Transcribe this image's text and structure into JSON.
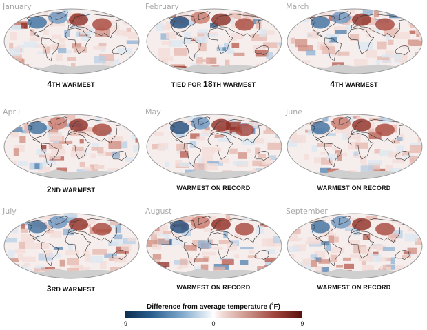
{
  "panels": [
    {
      "month": "January",
      "rank": [
        {
          "t": "4",
          "big": true
        },
        {
          "t": "TH WARMEST",
          "big": false
        }
      ]
    },
    {
      "month": "February",
      "rank": [
        {
          "t": "TIED FOR ",
          "big": false
        },
        {
          "t": "18",
          "big": true
        },
        {
          "t": "TH WARMEST",
          "big": false
        }
      ]
    },
    {
      "month": "March",
      "rank": [
        {
          "t": "4",
          "big": true
        },
        {
          "t": "TH WARMEST",
          "big": false
        }
      ]
    },
    {
      "month": "April",
      "rank": [
        {
          "t": "2",
          "big": true
        },
        {
          "t": "ND WARMEST",
          "big": false
        }
      ]
    },
    {
      "month": "May",
      "rank": [
        {
          "t": "WARMEST ON RECORD",
          "big": false
        }
      ]
    },
    {
      "month": "June",
      "rank": [
        {
          "t": "WARMEST ON RECORD",
          "big": false
        }
      ]
    },
    {
      "month": "July",
      "rank": [
        {
          "t": "3",
          "big": true
        },
        {
          "t": "RD WARMEST",
          "big": false
        }
      ]
    },
    {
      "month": "August",
      "rank": [
        {
          "t": "WARMEST ON RECORD",
          "big": false
        }
      ]
    },
    {
      "month": "September",
      "rank": [
        {
          "t": "WARMEST ON RECORD",
          "big": false
        }
      ]
    }
  ],
  "legend": {
    "title": "Difference from average temperature (˚F)",
    "min_label": "-9",
    "mid_label": "0",
    "max_label": "9",
    "colors": {
      "cold": "#0d2f52",
      "neutral": "#ffffff",
      "warm": "#5a120c"
    }
  }
}
